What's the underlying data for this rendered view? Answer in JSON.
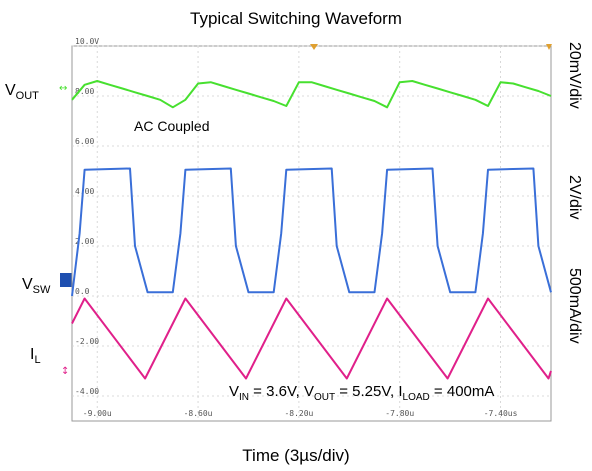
{
  "chart_data": {
    "type": "line",
    "title": "Typical Switching Waveform",
    "xlabel": "Time (3µs/div)",
    "y_tick_labels": [
      "10.0V",
      "8.00",
      "6.00",
      "4.00",
      "2.00",
      "0.0",
      "-2.00",
      "-4.00"
    ],
    "y_tick_values": [
      10,
      8,
      6,
      4,
      2,
      0,
      -2,
      -4
    ],
    "x_tick_labels": [
      "-9.00u",
      "-8.60u",
      "-8.20u",
      "-7.80u",
      "-7.40us"
    ],
    "x_tick_values": [
      -9.0,
      -8.6,
      -8.2,
      -7.8,
      -7.4
    ],
    "xlim": [
      -9.1,
      -7.2
    ],
    "ylim": [
      -5.0,
      10.0
    ],
    "grid": true,
    "annotation": "AC Coupled",
    "conditions": {
      "vin": "3.6V",
      "vout": "5.25V",
      "iload": "400mA"
    },
    "channel_labels": {
      "vout": "V",
      "vout_sub": "OUT",
      "vsw": "V",
      "vsw_sub": "SW",
      "il": "I",
      "il_sub": "L"
    },
    "scale_labels": [
      "20mV/div",
      "2V/div",
      "500mA/div"
    ],
    "series": [
      {
        "name": "VOUT",
        "color": "#47e02f",
        "x": [
          -9.1,
          -9.05,
          -9.0,
          -8.95,
          -8.9,
          -8.85,
          -8.8,
          -8.75,
          -8.7,
          -8.65,
          -8.6,
          -8.55,
          -8.5,
          -8.45,
          -8.4,
          -8.35,
          -8.3,
          -8.25,
          -8.2,
          -8.15,
          -8.1,
          -8.05,
          -8.0,
          -7.95,
          -7.9,
          -7.85,
          -7.8,
          -7.75,
          -7.7,
          -7.65,
          -7.6,
          -7.55,
          -7.5,
          -7.45,
          -7.4,
          -7.35,
          -7.3,
          -7.25,
          -7.2
        ],
        "values": [
          7.85,
          8.45,
          8.6,
          8.45,
          8.3,
          8.15,
          8.0,
          7.85,
          7.55,
          7.85,
          8.5,
          8.55,
          8.4,
          8.25,
          8.1,
          7.95,
          7.8,
          7.6,
          8.55,
          8.55,
          8.4,
          8.25,
          8.1,
          7.95,
          7.8,
          7.55,
          8.55,
          8.6,
          8.45,
          8.3,
          8.15,
          8.0,
          7.85,
          7.6,
          8.55,
          8.5,
          8.35,
          8.2,
          8.0
        ]
      },
      {
        "name": "VSW",
        "color": "#3a6fd8",
        "x": [
          -9.1,
          -9.07,
          -9.05,
          -8.87,
          -8.85,
          -8.8,
          -8.7,
          -8.67,
          -8.65,
          -8.47,
          -8.45,
          -8.4,
          -8.3,
          -8.27,
          -8.25,
          -8.07,
          -8.05,
          -8.0,
          -7.9,
          -7.87,
          -7.85,
          -7.67,
          -7.65,
          -7.6,
          -7.5,
          -7.47,
          -7.45,
          -7.27,
          -7.25,
          -7.2
        ],
        "values": [
          0.0,
          2.5,
          5.05,
          5.1,
          2.0,
          0.15,
          0.15,
          2.5,
          5.05,
          5.1,
          2.0,
          0.15,
          0.15,
          2.5,
          5.05,
          5.1,
          2.0,
          0.15,
          0.15,
          2.5,
          5.05,
          5.1,
          2.0,
          0.15,
          0.15,
          2.5,
          5.05,
          5.1,
          2.0,
          0.15
        ]
      },
      {
        "name": "IL",
        "color": "#e0208a",
        "x": [
          -9.1,
          -9.05,
          -8.81,
          -8.65,
          -8.41,
          -8.25,
          -8.01,
          -7.85,
          -7.61,
          -7.45,
          -7.21,
          -7.2
        ],
        "values": [
          -1.1,
          -0.1,
          -3.3,
          -0.1,
          -3.3,
          -0.1,
          -3.3,
          -0.1,
          -3.3,
          -0.1,
          -3.3,
          -3.0
        ]
      }
    ]
  }
}
